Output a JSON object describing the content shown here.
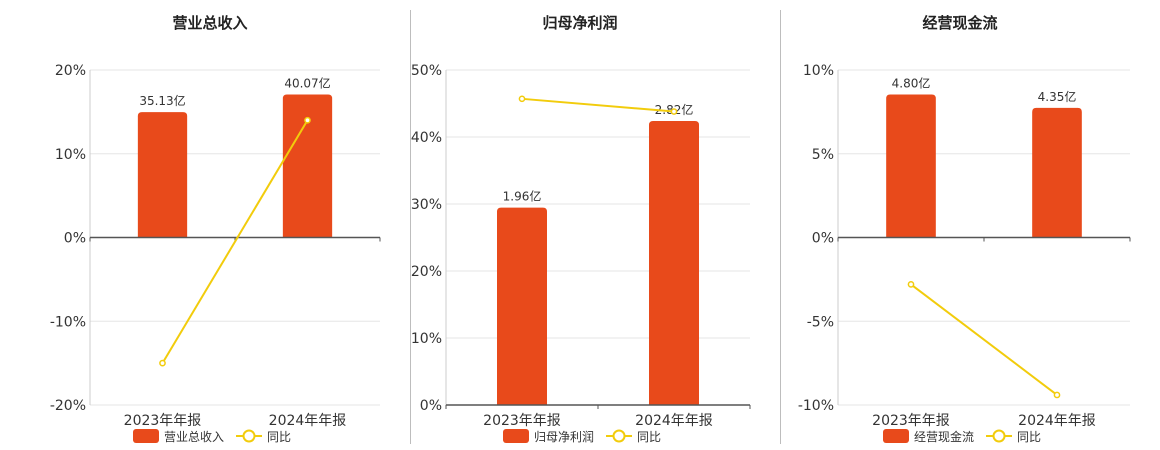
{
  "colors": {
    "bar": "#E84A1B",
    "line": "#F2CC0C",
    "grid": "#e6e6e6",
    "axis": "#555555"
  },
  "chart_data": [
    {
      "type": "bar",
      "title": "营业总收入",
      "categories": [
        "2023年年报",
        "2024年年报"
      ],
      "bar_series": {
        "name": "营业总收入",
        "values": [
          35.13,
          40.07
        ],
        "labels": [
          "35.13亿",
          "40.07亿"
        ]
      },
      "line_series": {
        "name": "同比",
        "values": [
          -15.0,
          14.0
        ]
      },
      "ylim": [
        -20,
        20
      ],
      "yticks": [
        20,
        10,
        0,
        -10,
        -20
      ],
      "ytick_labels": [
        "20%",
        "10%",
        "0%",
        "-10%",
        "-20%"
      ],
      "legend": [
        "营业总收入",
        "同比"
      ]
    },
    {
      "type": "bar",
      "title": "归母净利润",
      "categories": [
        "2023年年报",
        "2024年年报"
      ],
      "bar_series": {
        "name": "归母净利润",
        "values": [
          1.96,
          2.82
        ],
        "labels": [
          "1.96亿",
          "2.82亿"
        ]
      },
      "line_series": {
        "name": "同比",
        "values": [
          45.7,
          43.8
        ]
      },
      "ylim": [
        0,
        50
      ],
      "yticks": [
        50,
        40,
        30,
        20,
        10,
        0
      ],
      "ytick_labels": [
        "50%",
        "40%",
        "30%",
        "20%",
        "10%",
        "0%"
      ],
      "legend": [
        "归母净利润",
        "同比"
      ]
    },
    {
      "type": "bar",
      "title": "经营现金流",
      "categories": [
        "2023年年报",
        "2024年年报"
      ],
      "bar_series": {
        "name": "经营现金流",
        "values": [
          4.8,
          4.35
        ],
        "labels": [
          "4.80亿",
          "4.35亿"
        ]
      },
      "line_series": {
        "name": "同比",
        "values": [
          -2.8,
          -9.4
        ]
      },
      "ylim": [
        -10,
        10
      ],
      "yticks": [
        10,
        5,
        0,
        -5,
        -10
      ],
      "ytick_labels": [
        "10%",
        "5%",
        "0%",
        "-5%",
        "-10%"
      ],
      "legend": [
        "经营现金流",
        "同比"
      ]
    }
  ]
}
